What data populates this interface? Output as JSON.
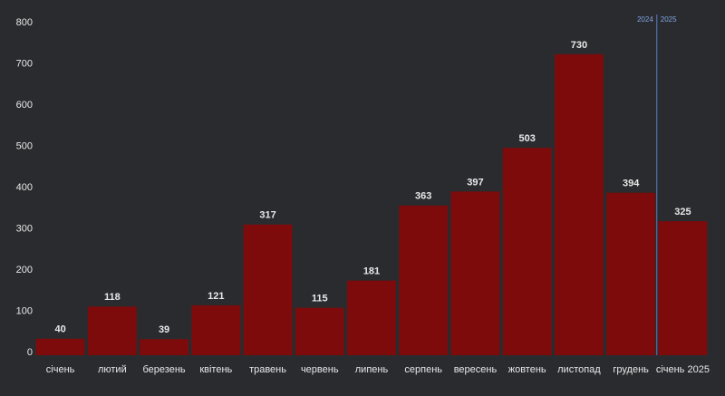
{
  "chart_data": {
    "type": "bar",
    "categories": [
      "січень",
      "лютий",
      "березень",
      "квітень",
      "травень",
      "червень",
      "липень",
      "серпень",
      "вересень",
      "жовтень",
      "листопад",
      "грудень",
      "січень 2025"
    ],
    "values": [
      40,
      118,
      39,
      121,
      317,
      115,
      181,
      363,
      397,
      503,
      730,
      394,
      325
    ],
    "color": "#7e0b0b",
    "ylim": [
      0,
      800
    ],
    "yticks": [
      0,
      100,
      200,
      300,
      400,
      500,
      600,
      700,
      800
    ],
    "grid": false,
    "annotations": [
      "2024",
      "2025"
    ]
  }
}
